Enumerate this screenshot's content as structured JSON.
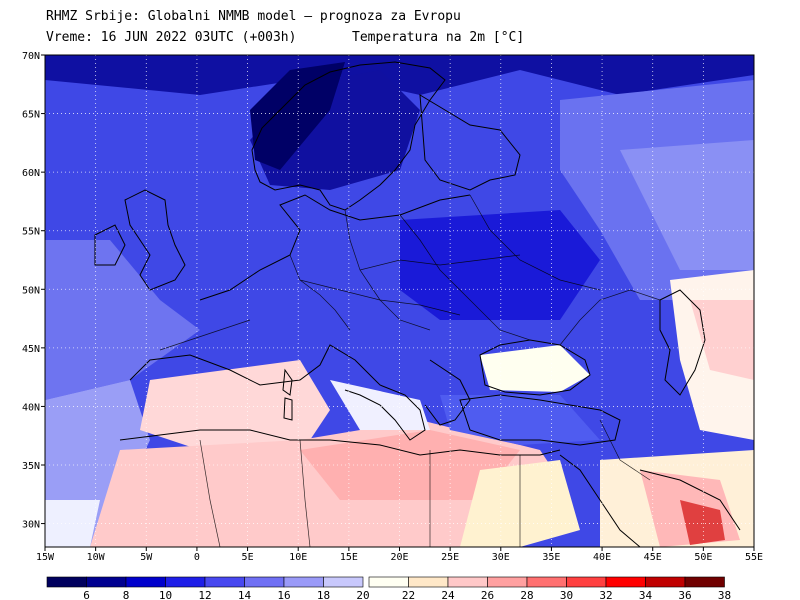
{
  "header": {
    "line1": "RHMZ Srbije: Globalni NMMB model — prognoza za Evropu",
    "line2": "Vreme: 16 JUN 2022 03UTC (+003h)",
    "line3": "Temperatura na 2m [°C]"
  },
  "map": {
    "lat_labels": [
      "70N",
      "65N",
      "60N",
      "55N",
      "50N",
      "45N",
      "40N",
      "35N",
      "30N"
    ],
    "lon_labels": [
      "15W",
      "10W",
      "5W",
      "0",
      "5E",
      "10E",
      "15E",
      "20E",
      "25E",
      "30E",
      "35E",
      "40E",
      "45E",
      "50E",
      "55E"
    ],
    "lat_range": [
      28,
      70
    ],
    "lon_range": [
      -15,
      55
    ],
    "background_color": "#3f48e6"
  },
  "colorbar": {
    "labels": [
      "6",
      "8",
      "10",
      "12",
      "14",
      "16",
      "18",
      "20",
      "22",
      "24",
      "26",
      "28",
      "30",
      "32",
      "34",
      "36",
      "38"
    ],
    "colors": [
      "#00005e",
      "#000090",
      "#0000cc",
      "#1e1ee8",
      "#4848f0",
      "#7070f4",
      "#9a9af8",
      "#c8c8fc",
      "#fffff2",
      "#ffe8c8",
      "#ffc8c8",
      "#ffa0a0",
      "#ff7070",
      "#ff4040",
      "#ff0000",
      "#c00000",
      "#700000"
    ]
  }
}
